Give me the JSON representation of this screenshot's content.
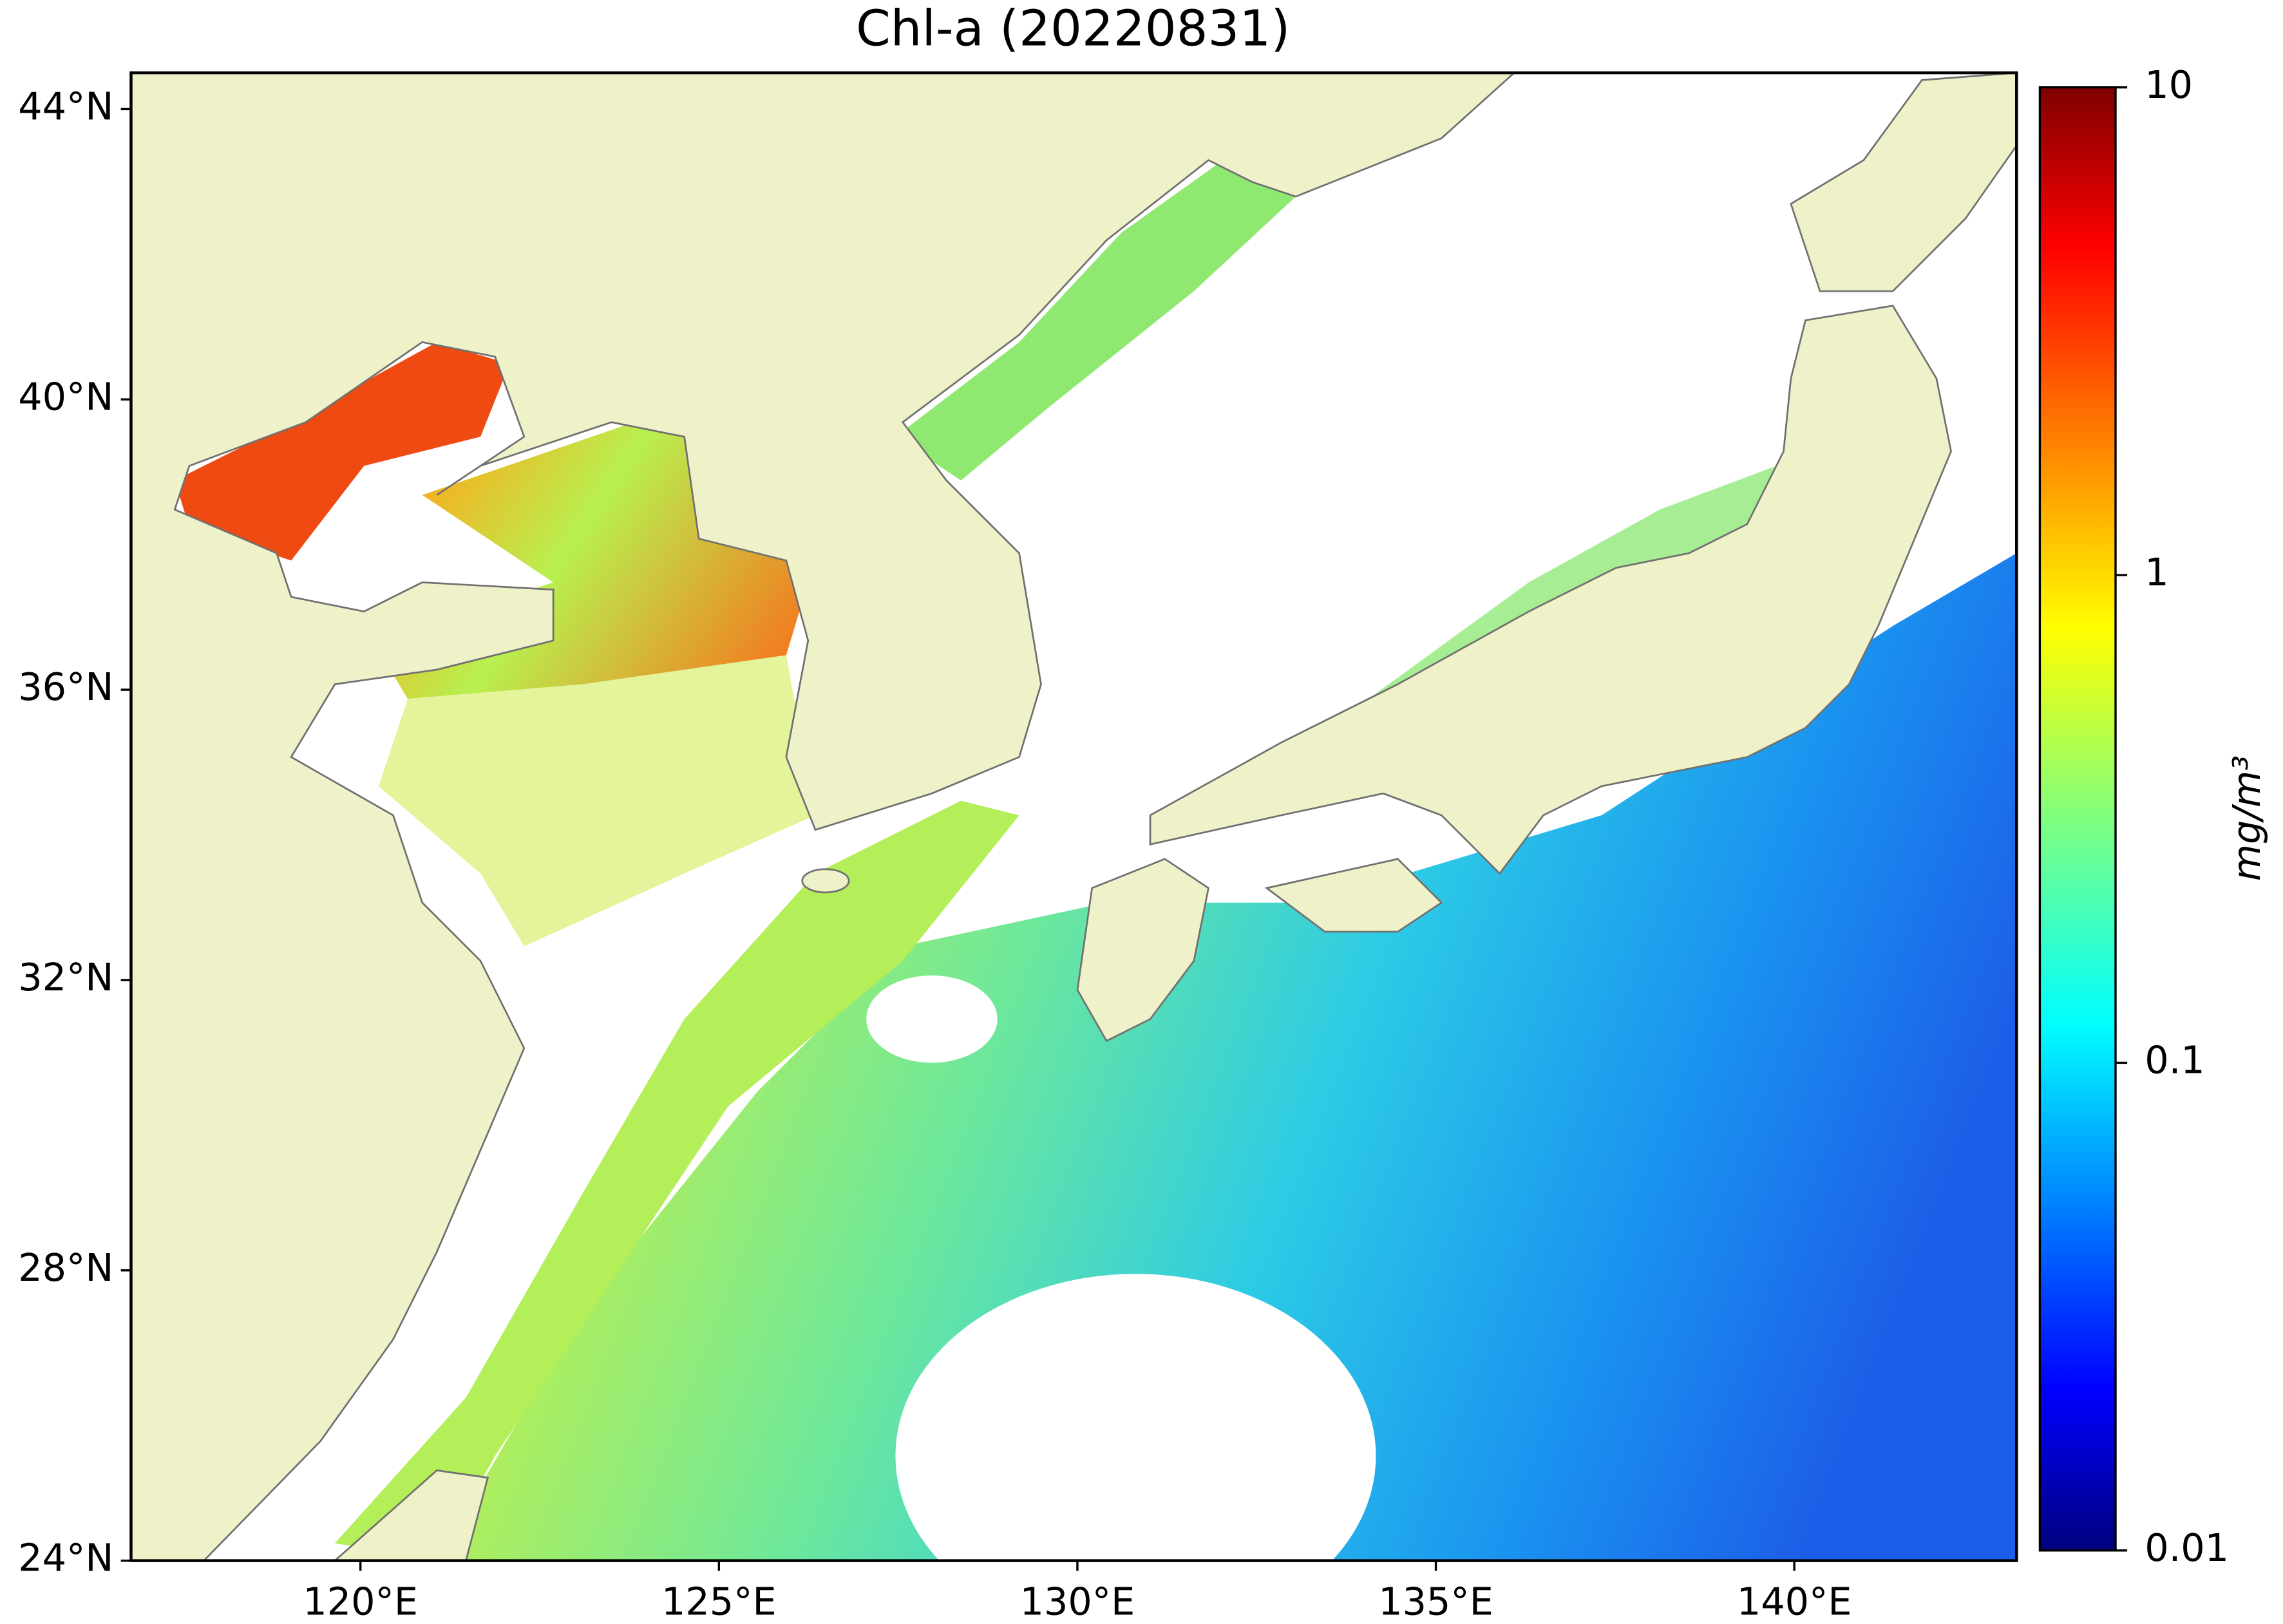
{
  "chart_data": {
    "type": "map",
    "title": "Chl-a (20220831)",
    "xlim": [
      116.8,
      143.1
    ],
    "ylim": [
      24,
      44.5
    ],
    "xticks": [
      {
        "value": 120,
        "label": "120°E"
      },
      {
        "value": 125,
        "label": "125°E"
      },
      {
        "value": 130,
        "label": "130°E"
      },
      {
        "value": 135,
        "label": "135°E"
      },
      {
        "value": 140,
        "label": "140°E"
      }
    ],
    "yticks": [
      {
        "value": 24,
        "label": "24°N"
      },
      {
        "value": 28,
        "label": "28°N"
      },
      {
        "value": 32,
        "label": "32°N"
      },
      {
        "value": 36,
        "label": "36°N"
      },
      {
        "value": 40,
        "label": "40°N"
      },
      {
        "value": 44,
        "label": "44°N"
      }
    ],
    "colorbar": {
      "label": "mg/m³",
      "clim": [
        0.01,
        10
      ],
      "log_scale": true,
      "colormap": "jet",
      "ticks": [
        0.01,
        0.1,
        1,
        10
      ]
    }
  }
}
